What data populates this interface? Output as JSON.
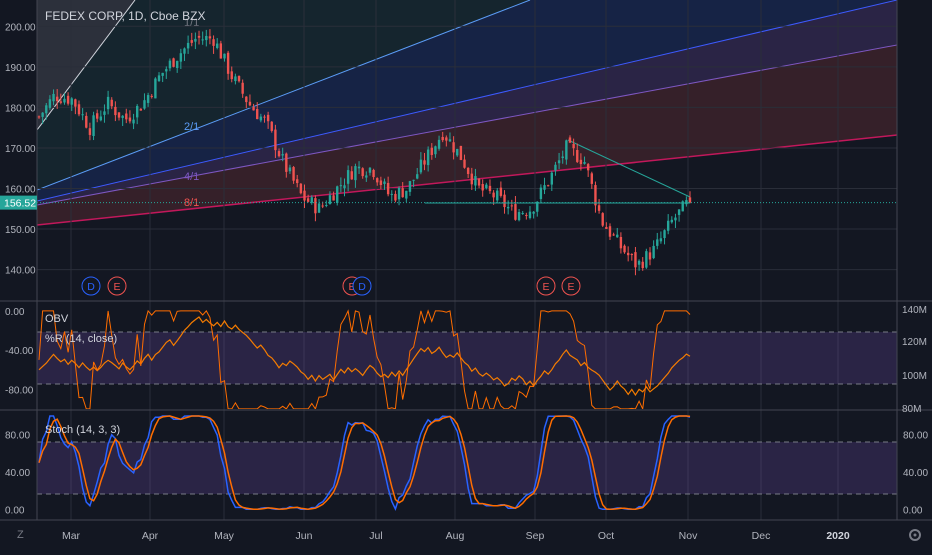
{
  "header": {
    "title": "FEDEX CORP, 1D, Cboe BZX"
  },
  "colors": {
    "background": "#131722",
    "grid": "#2a2e39",
    "axis_text": "#b2b5be",
    "candle_up": "#26a69a",
    "candle_down": "#ef5350",
    "price_label_bg": "#26a69a",
    "obv_line": "#f57c00",
    "williams_r_line": "#ff6d00",
    "stoch_k": "#2962ff",
    "stoch_d": "#ff6d00",
    "indicator_band": "#7e57c2",
    "event_d": "#2962ff",
    "event_e": "#ef5350",
    "gann_fan_1": "#5b9cf6",
    "gann_fan_2": "#7e57c2",
    "gann_fan_3": "#ef5350"
  },
  "chart_data": [
    {
      "type": "candlestick",
      "title": "FEDEX CORP, 1D, Cboe BZX",
      "ylim": [
        133,
        205
      ],
      "yticks": [
        "200.00",
        "190.00",
        "180.00",
        "170.00",
        "160.00",
        "150.00",
        "140.00"
      ],
      "last_price_label": "156.52",
      "last_price": 156.52,
      "x_labels": [
        "Mar",
        "Apr",
        "May",
        "Jun",
        "Jul",
        "Aug",
        "Sep",
        "Oct",
        "Nov",
        "Dec",
        "2020",
        "Z"
      ],
      "grid": "on",
      "gann_fan_labels": [
        "1/1",
        "2/1",
        "4/1",
        "8/1"
      ],
      "events": [
        {
          "label": "D",
          "color": "event_d"
        },
        {
          "label": "E",
          "color": "event_e"
        },
        {
          "label": "E",
          "color": "event_e"
        },
        {
          "label": "D",
          "color": "event_d"
        },
        {
          "label": "E",
          "color": "event_e"
        },
        {
          "label": "E",
          "color": "event_e"
        }
      ],
      "close_path": [
        [
          "2019-02-15",
          177
        ],
        [
          "2019-02-22",
          183
        ],
        [
          "2019-03-01",
          182
        ],
        [
          "2019-03-08",
          175
        ],
        [
          "2019-03-15",
          181
        ],
        [
          "2019-03-22",
          177
        ],
        [
          "2019-03-29",
          181
        ],
        [
          "2019-04-05",
          188
        ],
        [
          "2019-04-12",
          193
        ],
        [
          "2019-04-19",
          197
        ],
        [
          "2019-04-26",
          197
        ],
        [
          "2019-05-03",
          188
        ],
        [
          "2019-05-10",
          181
        ],
        [
          "2019-05-17",
          176
        ],
        [
          "2019-05-24",
          166
        ],
        [
          "2019-05-31",
          158
        ],
        [
          "2019-06-07",
          155
        ],
        [
          "2019-06-14",
          160
        ],
        [
          "2019-06-21",
          165
        ],
        [
          "2019-06-28",
          165
        ],
        [
          "2019-07-05",
          158
        ],
        [
          "2019-07-12",
          160
        ],
        [
          "2019-07-19",
          167
        ],
        [
          "2019-07-26",
          174
        ],
        [
          "2019-08-02",
          168
        ],
        [
          "2019-08-09",
          160
        ],
        [
          "2019-08-16",
          158
        ],
        [
          "2019-08-23",
          154
        ],
        [
          "2019-08-30",
          155
        ],
        [
          "2019-09-06",
          162
        ],
        [
          "2019-09-13",
          170
        ],
        [
          "2019-09-20",
          167
        ],
        [
          "2019-09-27",
          152
        ],
        [
          "2019-10-04",
          146
        ],
        [
          "2019-10-11",
          141
        ],
        [
          "2019-10-18",
          145
        ],
        [
          "2019-10-25",
          152
        ],
        [
          "2019-11-01",
          157
        ]
      ]
    },
    {
      "type": "line",
      "series": [
        {
          "name": "OBV"
        },
        {
          "name": "%R (14, close)"
        }
      ],
      "yticks_left": [
        "0.00",
        "-40.00",
        "-80.00"
      ],
      "yticks_right": [
        "140M",
        "120M",
        "100M",
        "80M"
      ],
      "band": [
        -20,
        -80
      ],
      "ylim": [
        -95,
        5
      ]
    },
    {
      "type": "line",
      "series": [
        {
          "name": "Stoch (14, 3, 3)"
        }
      ],
      "yticks": [
        "80.00",
        "40.00",
        "0.00"
      ],
      "band": [
        80,
        20
      ],
      "ylim": [
        -5,
        100
      ]
    }
  ]
}
